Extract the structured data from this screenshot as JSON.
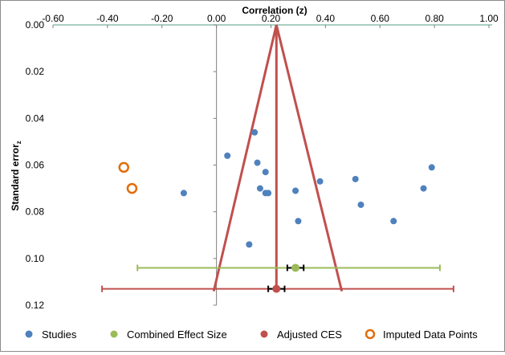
{
  "chart_data": {
    "type": "scatter",
    "title": "",
    "xlabel": "Correlation (z)",
    "ylabel": "Standard error",
    "ylabel_subscript": "z",
    "x_axis_position": "top",
    "y_axis_inverted": true,
    "xlim": [
      -0.6,
      1.0
    ],
    "ylim": [
      0.0,
      0.12
    ],
    "x_ticks": [
      "-0.60",
      "-0.40",
      "-0.20",
      "0.00",
      "0.20",
      "0.40",
      "0.60",
      "0.80",
      "1.00"
    ],
    "x_tick_values": [
      -0.6,
      -0.4,
      -0.2,
      0.0,
      0.2,
      0.4,
      0.6,
      0.8,
      1.0
    ],
    "y_ticks": [
      "0.00",
      "0.02",
      "0.04",
      "0.06",
      "0.08",
      "0.10",
      "0.12"
    ],
    "y_tick_values": [
      0.0,
      0.02,
      0.04,
      0.06,
      0.08,
      0.1,
      0.12
    ],
    "grid": false,
    "legend_position": "bottom",
    "series": [
      {
        "name": "Studies",
        "marker": "filled-circle",
        "color": "#4f81bd",
        "points": [
          {
            "x": 0.14,
            "y": 0.046
          },
          {
            "x": 0.04,
            "y": 0.056
          },
          {
            "x": 0.15,
            "y": 0.059
          },
          {
            "x": 0.18,
            "y": 0.063
          },
          {
            "x": 0.16,
            "y": 0.07
          },
          {
            "x": 0.18,
            "y": 0.072
          },
          {
            "x": 0.19,
            "y": 0.072
          },
          {
            "x": -0.12,
            "y": 0.072
          },
          {
            "x": 0.29,
            "y": 0.071
          },
          {
            "x": 0.38,
            "y": 0.067
          },
          {
            "x": 0.51,
            "y": 0.066
          },
          {
            "x": 0.79,
            "y": 0.061
          },
          {
            "x": 0.76,
            "y": 0.07
          },
          {
            "x": 0.53,
            "y": 0.077
          },
          {
            "x": 0.3,
            "y": 0.084
          },
          {
            "x": 0.65,
            "y": 0.084
          },
          {
            "x": 0.12,
            "y": 0.094
          }
        ]
      },
      {
        "name": "Combined Effect Size",
        "marker": "filled-circle",
        "color": "#9bbb59",
        "points": [
          {
            "x": 0.29,
            "y": 0.104
          }
        ],
        "ci_95": [
          -0.29,
          0.82
        ],
        "ci_narrow": [
          0.26,
          0.32
        ]
      },
      {
        "name": "Adjusted CES",
        "marker": "filled-circle",
        "color": "#c0504d",
        "points": [
          {
            "x": 0.22,
            "y": 0.113
          }
        ],
        "ci_95": [
          -0.42,
          0.87
        ],
        "ci_narrow": [
          0.19,
          0.25
        ]
      },
      {
        "name": "Imputed Data Points",
        "marker": "open-circle",
        "color": "#e36c09",
        "points": [
          {
            "x": -0.34,
            "y": 0.061
          },
          {
            "x": -0.31,
            "y": 0.07
          }
        ]
      }
    ],
    "funnel": {
      "color": "#c0504d",
      "apex": {
        "x": 0.22,
        "y": 0.0
      },
      "base_left": {
        "x": -0.01,
        "y": 0.114
      },
      "base_right": {
        "x": 0.46,
        "y": 0.114
      }
    },
    "reference_line_x": 0.0
  }
}
